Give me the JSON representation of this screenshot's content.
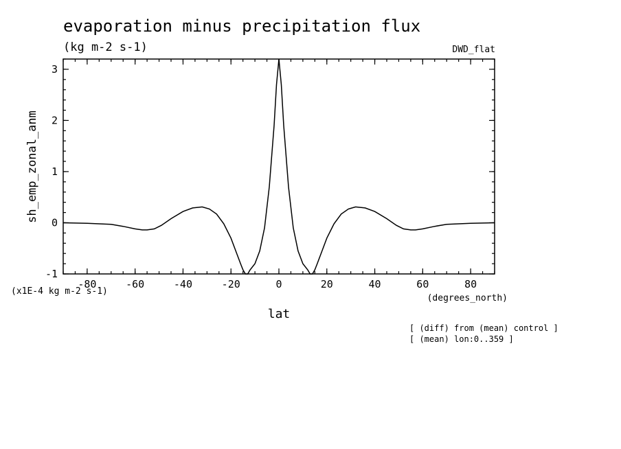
{
  "chart_data": {
    "type": "line",
    "title": "evaporation minus precipitation flux",
    "subtitle": "(kg m-2 s-1)",
    "dataset_label": "DWD_flat",
    "xlabel": "lat",
    "x_units": "(degrees_north)",
    "ylabel": "sh_emp_zonal_anm",
    "y_scale_label": "(x1E-4 kg m-2 s-1)",
    "notes": [
      "[ (diff) from (mean) control ]",
      "[ (mean) lon:0..359 ]"
    ],
    "xlim": [
      -90,
      90
    ],
    "ylim": [
      -1,
      3.2
    ],
    "x_ticks": [
      -80,
      -60,
      -40,
      -20,
      0,
      20,
      40,
      60,
      80
    ],
    "x_tick_labels": [
      "-80",
      "-60",
      "-40",
      "-20",
      "0",
      "20",
      "40",
      "60",
      "80"
    ],
    "y_ticks": [
      -1,
      0,
      1,
      2,
      3
    ],
    "y_tick_labels": [
      "-1",
      "0",
      "1",
      "2",
      "3"
    ],
    "grid": false,
    "series": [
      {
        "x": [
          -90,
          -80,
          -75,
          -70,
          -65,
          -60,
          -57,
          -55,
          -52,
          -49,
          -45,
          -40,
          -36,
          -32,
          -29,
          -26,
          -23,
          -20,
          -18,
          -16,
          -15,
          -14,
          -13.5,
          -13,
          -12,
          -10,
          -8,
          -6,
          -4,
          -2,
          -1,
          0,
          1,
          2,
          4,
          6,
          8,
          10,
          12,
          13,
          13.5,
          14,
          15,
          16,
          18,
          20,
          23,
          26,
          29,
          32,
          36,
          40,
          45,
          49,
          52,
          55,
          57,
          60,
          65,
          70,
          75,
          80,
          90
        ],
        "y": [
          0.0,
          -0.01,
          -0.02,
          -0.03,
          -0.07,
          -0.12,
          -0.14,
          -0.14,
          -0.12,
          -0.05,
          0.08,
          0.22,
          0.29,
          0.31,
          0.27,
          0.17,
          -0.02,
          -0.3,
          -0.55,
          -0.8,
          -0.92,
          -1.0,
          -1.02,
          -1.0,
          -0.92,
          -0.8,
          -0.55,
          -0.1,
          0.7,
          1.9,
          2.7,
          3.2,
          2.7,
          1.9,
          0.7,
          -0.1,
          -0.55,
          -0.8,
          -0.92,
          -1.0,
          -1.02,
          -1.0,
          -0.92,
          -0.8,
          -0.55,
          -0.3,
          -0.02,
          0.17,
          0.27,
          0.31,
          0.29,
          0.22,
          0.08,
          -0.05,
          -0.12,
          -0.14,
          -0.14,
          -0.12,
          -0.07,
          -0.03,
          -0.02,
          -0.01,
          0.0
        ]
      }
    ]
  }
}
